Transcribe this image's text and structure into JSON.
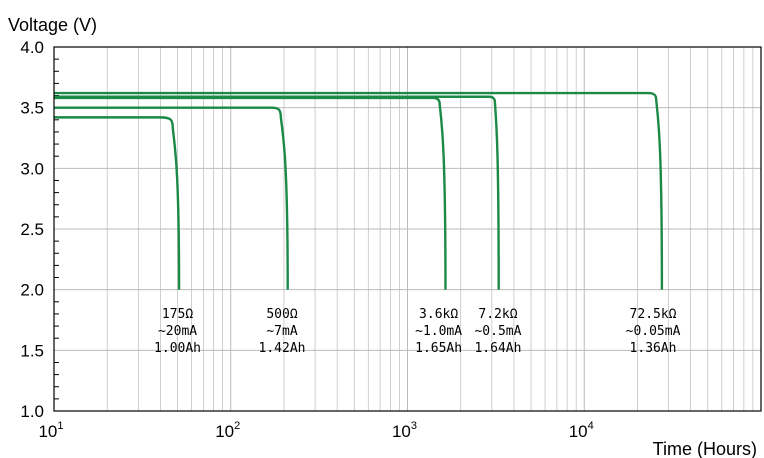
{
  "chart_data": {
    "type": "line",
    "ylabel": "Voltage (V)",
    "xlabel": "Time (Hours)",
    "x_scale": "log",
    "xlim": [
      10,
      100000
    ],
    "ylim": [
      1.0,
      4.0
    ],
    "grid": true,
    "colors": {
      "series": "#1a8a46",
      "grid": "#bbbbbb",
      "frame": "#000000"
    },
    "y_ticks": [
      "1.0",
      "1.5",
      "2.0",
      "2.5",
      "3.0",
      "3.5",
      "4.0"
    ],
    "x_ticks": [
      {
        "base": "10",
        "exp": "1",
        "value": 10
      },
      {
        "base": "10",
        "exp": "2",
        "value": 100
      },
      {
        "base": "10",
        "exp": "3",
        "value": 1000
      },
      {
        "base": "10",
        "exp": "4",
        "value": 10000
      }
    ],
    "series": [
      {
        "plateau": 3.42,
        "plateau_end": 40,
        "knee": 3.33,
        "drop_start": 47,
        "end": 51
      },
      {
        "plateau": 3.5,
        "plateau_end": 170,
        "knee": 3.42,
        "drop_start": 192,
        "end": 210
      },
      {
        "plateau": 3.58,
        "plateau_end": 1400,
        "knee": 3.53,
        "drop_start": 1520,
        "end": 1640
      },
      {
        "plateau": 3.59,
        "plateau_end": 2900,
        "knee": 3.55,
        "drop_start": 3120,
        "end": 3280
      },
      {
        "plateau": 3.62,
        "plateau_end": 23000,
        "knee": 3.57,
        "drop_start": 25500,
        "end": 27500
      }
    ],
    "annotations": [
      {
        "lines": [
          "175Ω",
          "~20mA",
          "1.00Ah"
        ],
        "x": 50
      },
      {
        "lines": [
          "500Ω",
          "~7mA",
          "1.42Ah"
        ],
        "x": 195
      },
      {
        "lines": [
          "3.6kΩ",
          "~1.0mA",
          "1.65Ah"
        ],
        "x": 1500
      },
      {
        "lines": [
          "7.2kΩ",
          "~0.5mA",
          "1.64Ah"
        ],
        "x": 3250
      },
      {
        "lines": [
          "72.5kΩ",
          "~0.05mA",
          "1.36Ah"
        ],
        "x": 24500
      }
    ]
  }
}
